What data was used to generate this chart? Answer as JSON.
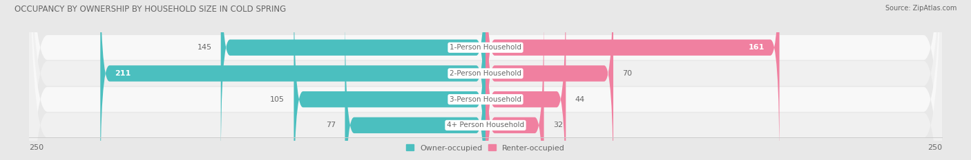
{
  "title": "OCCUPANCY BY OWNERSHIP BY HOUSEHOLD SIZE IN COLD SPRING",
  "source": "Source: ZipAtlas.com",
  "categories": [
    "1-Person Household",
    "2-Person Household",
    "3-Person Household",
    "4+ Person Household"
  ],
  "owner_values": [
    145,
    211,
    105,
    77
  ],
  "renter_values": [
    161,
    70,
    44,
    32
  ],
  "owner_color": "#4BBFBF",
  "renter_color": "#F080A0",
  "axis_max": 250,
  "bg_color": "#e8e8e8",
  "row_colors": [
    "#f7f7f7",
    "#efefef",
    "#f7f7f7",
    "#efefef"
  ],
  "label_color": "#666666",
  "title_color": "#666666",
  "legend_owner": "Owner-occupied",
  "legend_renter": "Renter-occupied"
}
